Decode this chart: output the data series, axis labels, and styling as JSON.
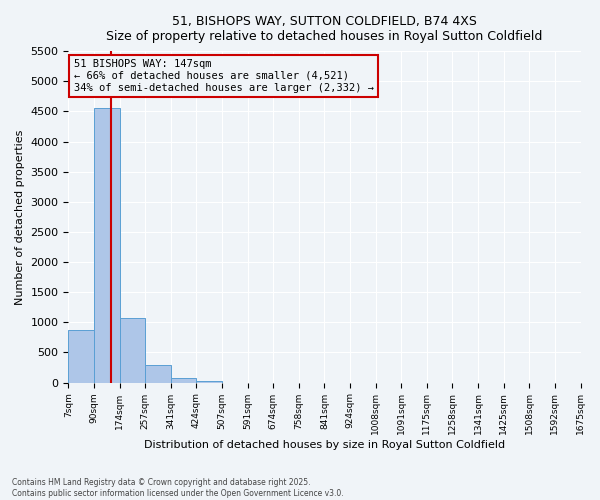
{
  "title": "51, BISHOPS WAY, SUTTON COLDFIELD, B74 4XS",
  "subtitle": "Size of property relative to detached houses in Royal Sutton Coldfield",
  "xlabel": "Distribution of detached houses by size in Royal Sutton Coldfield",
  "ylabel": "Number of detached properties",
  "annotation_line1": "51 BISHOPS WAY: 147sqm",
  "annotation_line2": "← 66% of detached houses are smaller (4,521)",
  "annotation_line3": "34% of semi-detached houses are larger (2,332) →",
  "property_size": 147,
  "bar_color": "#aec6e8",
  "bar_edgecolor": "#5a9fd4",
  "redline_color": "#cc0000",
  "annotation_box_color": "#cc0000",
  "background_color": "#f0f4f8",
  "grid_color": "#ffffff",
  "ylim": [
    0,
    5500
  ],
  "yticks": [
    0,
    500,
    1000,
    1500,
    2000,
    2500,
    3000,
    3500,
    4000,
    4500,
    5000,
    5500
  ],
  "bin_edges": [
    7,
    90,
    174,
    257,
    341,
    424,
    507,
    591,
    674,
    758,
    841,
    924,
    1008,
    1091,
    1175,
    1258,
    1341,
    1425,
    1508,
    1592,
    1675
  ],
  "bin_labels": [
    "7sqm",
    "90sqm",
    "174sqm",
    "257sqm",
    "341sqm",
    "424sqm",
    "507sqm",
    "591sqm",
    "674sqm",
    "758sqm",
    "841sqm",
    "924sqm",
    "1008sqm",
    "1091sqm",
    "1175sqm",
    "1258sqm",
    "1341sqm",
    "1425sqm",
    "1508sqm",
    "1592sqm",
    "1675sqm"
  ],
  "bar_heights": [
    880,
    4550,
    1080,
    290,
    70,
    20,
    0,
    0,
    0,
    0,
    0,
    0,
    0,
    0,
    0,
    0,
    0,
    0,
    0,
    0
  ],
  "footer_line1": "Contains HM Land Registry data © Crown copyright and database right 2025.",
  "footer_line2": "Contains public sector information licensed under the Open Government Licence v3.0."
}
